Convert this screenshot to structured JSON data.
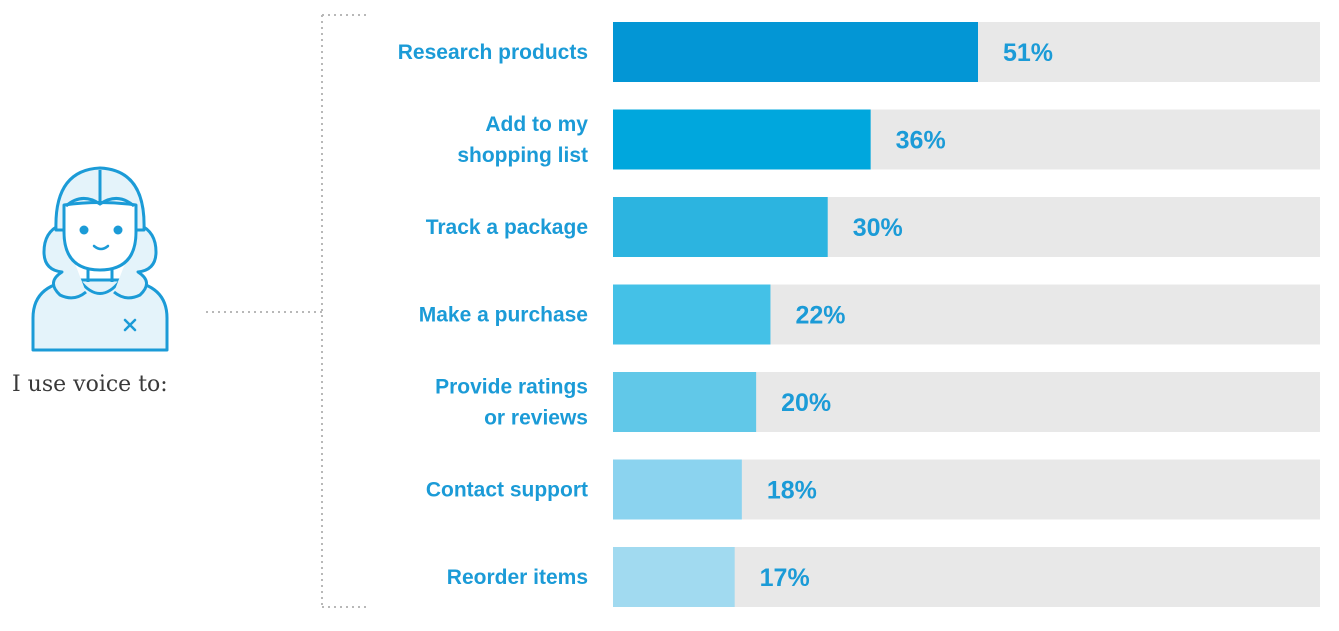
{
  "caption": "I use voice to:",
  "colors": {
    "track": "#e8e8e8",
    "label": "#1b9bd7",
    "bars": [
      "#0396d5",
      "#00a7dd",
      "#2cb4e0",
      "#44c1e7",
      "#61c8e8",
      "#8bd3ef",
      "#a1daf0"
    ],
    "icon_stroke": "#1b9bd7",
    "icon_fill": "#e4f3fa",
    "dots": "#b8b8b8"
  },
  "chart_data": {
    "type": "bar",
    "orientation": "horizontal",
    "title": "I use voice to:",
    "categories": [
      [
        "Research products"
      ],
      [
        "Add to my",
        "shopping list"
      ],
      [
        "Track a package"
      ],
      [
        "Make a purchase"
      ],
      [
        "Provide ratings",
        "or reviews"
      ],
      [
        "Contact support"
      ],
      [
        "Reorder items"
      ]
    ],
    "values": [
      51,
      36,
      30,
      22,
      20,
      18,
      17
    ],
    "value_labels": [
      "51%",
      "36%",
      "30%",
      "22%",
      "20%",
      "18%",
      "17%"
    ],
    "xlim": [
      0,
      100
    ],
    "unit": "%"
  }
}
